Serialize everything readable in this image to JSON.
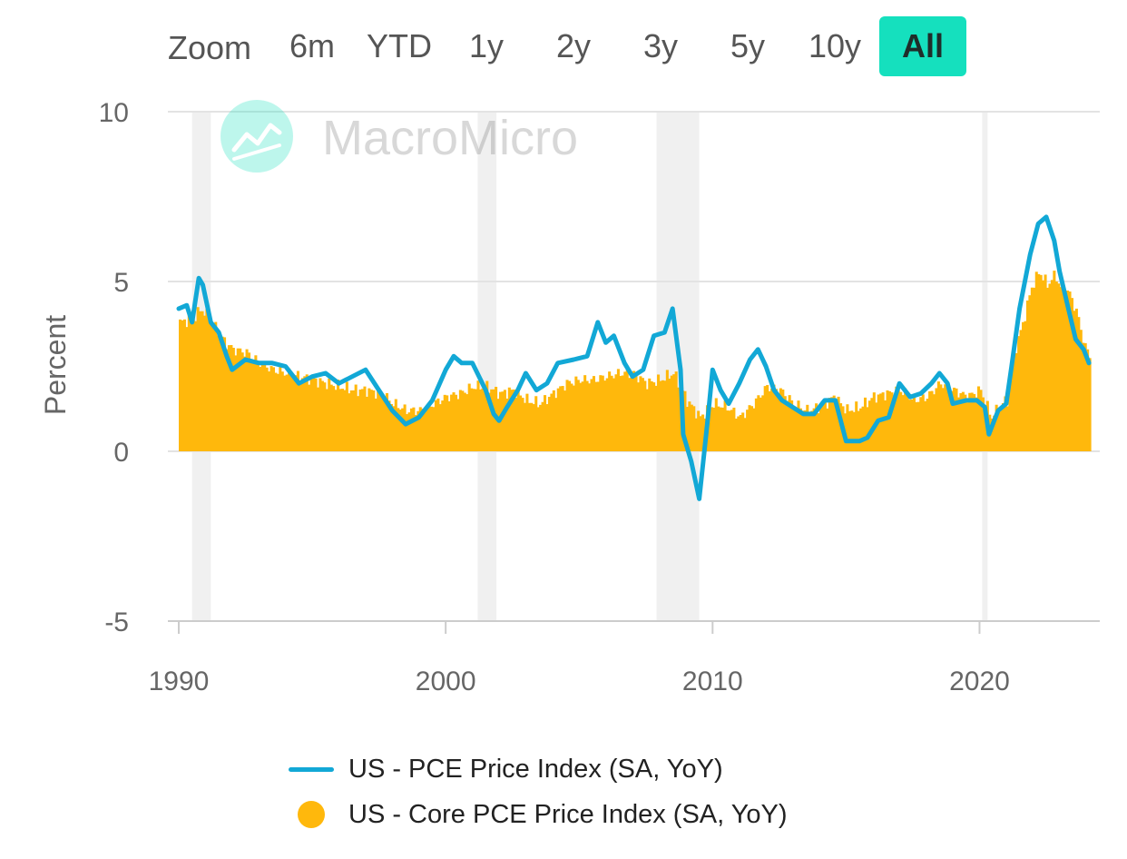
{
  "zoom": {
    "label": "Zoom",
    "buttons": [
      "6m",
      "YTD",
      "1y",
      "2y",
      "3y",
      "5y",
      "10y",
      "All"
    ],
    "active": "All"
  },
  "watermark": "MacroMicro",
  "colors": {
    "pce": "#12a8d6",
    "core": "#ffb80c",
    "recession": "#f0f0f0",
    "accent": "#15e0be"
  },
  "chart_data": {
    "type": "line",
    "ylabel": "Percent",
    "ylim": [
      -5,
      10
    ],
    "yticks": [
      -5,
      0,
      5,
      10
    ],
    "xlim": [
      1990,
      2024.2
    ],
    "xticks": [
      1990,
      2000,
      2010,
      2020
    ],
    "grid": true,
    "legend_position": "bottom",
    "recessions": [
      [
        1990.5,
        1991.2
      ],
      [
        2001.2,
        2001.9
      ],
      [
        2007.9,
        2009.5
      ],
      [
        2020.1,
        2020.3
      ]
    ],
    "series": [
      {
        "name": "US - PCE Price Index (SA, YoY)",
        "type": "line",
        "points": [
          [
            1990.0,
            4.2
          ],
          [
            1990.3,
            4.3
          ],
          [
            1990.5,
            3.8
          ],
          [
            1990.75,
            5.1
          ],
          [
            1990.9,
            4.9
          ],
          [
            1991.2,
            3.8
          ],
          [
            1991.5,
            3.5
          ],
          [
            1991.8,
            2.8
          ],
          [
            1992.0,
            2.4
          ],
          [
            1992.5,
            2.7
          ],
          [
            1993.0,
            2.6
          ],
          [
            1993.5,
            2.6
          ],
          [
            1994.0,
            2.5
          ],
          [
            1994.5,
            2.0
          ],
          [
            1995.0,
            2.2
          ],
          [
            1995.5,
            2.3
          ],
          [
            1996.0,
            2.0
          ],
          [
            1996.5,
            2.2
          ],
          [
            1997.0,
            2.4
          ],
          [
            1997.5,
            1.8
          ],
          [
            1998.0,
            1.2
          ],
          [
            1998.5,
            0.8
          ],
          [
            1999.0,
            1.0
          ],
          [
            1999.5,
            1.5
          ],
          [
            2000.0,
            2.4
          ],
          [
            2000.3,
            2.8
          ],
          [
            2000.6,
            2.6
          ],
          [
            2001.0,
            2.6
          ],
          [
            2001.5,
            1.8
          ],
          [
            2001.8,
            1.1
          ],
          [
            2002.0,
            0.9
          ],
          [
            2002.3,
            1.3
          ],
          [
            2002.7,
            1.8
          ],
          [
            2003.0,
            2.3
          ],
          [
            2003.4,
            1.8
          ],
          [
            2003.8,
            2.0
          ],
          [
            2004.2,
            2.6
          ],
          [
            2004.8,
            2.7
          ],
          [
            2005.3,
            2.8
          ],
          [
            2005.7,
            3.8
          ],
          [
            2006.0,
            3.2
          ],
          [
            2006.3,
            3.4
          ],
          [
            2006.7,
            2.6
          ],
          [
            2007.0,
            2.2
          ],
          [
            2007.4,
            2.4
          ],
          [
            2007.8,
            3.4
          ],
          [
            2008.2,
            3.5
          ],
          [
            2008.5,
            4.2
          ],
          [
            2008.8,
            2.4
          ],
          [
            2008.9,
            0.5
          ],
          [
            2009.2,
            -0.3
          ],
          [
            2009.5,
            -1.4
          ],
          [
            2009.8,
            0.8
          ],
          [
            2010.0,
            2.4
          ],
          [
            2010.3,
            1.8
          ],
          [
            2010.6,
            1.4
          ],
          [
            2011.0,
            2.0
          ],
          [
            2011.4,
            2.7
          ],
          [
            2011.7,
            3.0
          ],
          [
            2012.0,
            2.5
          ],
          [
            2012.3,
            1.8
          ],
          [
            2012.6,
            1.5
          ],
          [
            2013.0,
            1.3
          ],
          [
            2013.4,
            1.1
          ],
          [
            2013.8,
            1.1
          ],
          [
            2014.2,
            1.5
          ],
          [
            2014.6,
            1.5
          ],
          [
            2015.0,
            0.3
          ],
          [
            2015.5,
            0.3
          ],
          [
            2015.8,
            0.4
          ],
          [
            2016.2,
            0.9
          ],
          [
            2016.6,
            1.0
          ],
          [
            2017.0,
            2.0
          ],
          [
            2017.4,
            1.6
          ],
          [
            2017.8,
            1.7
          ],
          [
            2018.2,
            2.0
          ],
          [
            2018.5,
            2.3
          ],
          [
            2018.8,
            2.0
          ],
          [
            2019.0,
            1.4
          ],
          [
            2019.5,
            1.5
          ],
          [
            2019.9,
            1.5
          ],
          [
            2020.2,
            1.3
          ],
          [
            2020.35,
            0.5
          ],
          [
            2020.7,
            1.2
          ],
          [
            2021.0,
            1.4
          ],
          [
            2021.2,
            2.5
          ],
          [
            2021.5,
            4.2
          ],
          [
            2021.9,
            5.8
          ],
          [
            2022.2,
            6.7
          ],
          [
            2022.5,
            6.9
          ],
          [
            2022.8,
            6.2
          ],
          [
            2023.0,
            5.3
          ],
          [
            2023.3,
            4.3
          ],
          [
            2023.6,
            3.3
          ],
          [
            2023.9,
            3.0
          ],
          [
            2024.1,
            2.6
          ]
        ]
      },
      {
        "name": "US - Core PCE Price Index (SA, YoY)",
        "type": "area",
        "points": [
          [
            1990.0,
            3.8
          ],
          [
            1990.5,
            3.9
          ],
          [
            1990.8,
            4.2
          ],
          [
            1991.2,
            3.8
          ],
          [
            1991.7,
            3.2
          ],
          [
            1992.0,
            3.0
          ],
          [
            1992.5,
            2.9
          ],
          [
            1993.0,
            2.6
          ],
          [
            1993.5,
            2.4
          ],
          [
            1994.0,
            2.3
          ],
          [
            1994.5,
            2.2
          ],
          [
            1995.0,
            2.1
          ],
          [
            1995.5,
            2.0
          ],
          [
            1996.0,
            1.9
          ],
          [
            1996.5,
            1.8
          ],
          [
            1997.0,
            1.8
          ],
          [
            1997.5,
            1.7
          ],
          [
            1998.0,
            1.4
          ],
          [
            1998.5,
            1.2
          ],
          [
            1999.0,
            1.2
          ],
          [
            1999.5,
            1.4
          ],
          [
            2000.0,
            1.6
          ],
          [
            2000.5,
            1.7
          ],
          [
            2001.0,
            1.9
          ],
          [
            2001.5,
            1.9
          ],
          [
            2002.0,
            1.7
          ],
          [
            2002.5,
            1.8
          ],
          [
            2003.0,
            1.5
          ],
          [
            2003.5,
            1.4
          ],
          [
            2004.0,
            1.7
          ],
          [
            2004.5,
            2.0
          ],
          [
            2005.0,
            2.1
          ],
          [
            2005.5,
            2.1
          ],
          [
            2006.0,
            2.2
          ],
          [
            2006.5,
            2.3
          ],
          [
            2007.0,
            2.3
          ],
          [
            2007.5,
            2.0
          ],
          [
            2008.0,
            2.1
          ],
          [
            2008.5,
            2.3
          ],
          [
            2009.0,
            1.5
          ],
          [
            2009.5,
            1.0
          ],
          [
            2010.0,
            1.4
          ],
          [
            2010.5,
            1.3
          ],
          [
            2011.0,
            1.0
          ],
          [
            2011.5,
            1.4
          ],
          [
            2012.0,
            1.9
          ],
          [
            2012.5,
            1.8
          ],
          [
            2013.0,
            1.4
          ],
          [
            2013.5,
            1.2
          ],
          [
            2014.0,
            1.3
          ],
          [
            2014.5,
            1.6
          ],
          [
            2015.0,
            1.2
          ],
          [
            2015.5,
            1.3
          ],
          [
            2016.0,
            1.6
          ],
          [
            2016.5,
            1.7
          ],
          [
            2017.0,
            1.8
          ],
          [
            2017.5,
            1.5
          ],
          [
            2018.0,
            1.6
          ],
          [
            2018.5,
            2.0
          ],
          [
            2019.0,
            1.8
          ],
          [
            2019.5,
            1.6
          ],
          [
            2020.0,
            1.8
          ],
          [
            2020.4,
            1.0
          ],
          [
            2020.8,
            1.4
          ],
          [
            2021.0,
            1.5
          ],
          [
            2021.3,
            3.0
          ],
          [
            2021.6,
            3.8
          ],
          [
            2021.9,
            4.8
          ],
          [
            2022.2,
            5.3
          ],
          [
            2022.5,
            4.9
          ],
          [
            2022.8,
            5.2
          ],
          [
            2023.0,
            4.8
          ],
          [
            2023.3,
            4.7
          ],
          [
            2023.6,
            4.1
          ],
          [
            2023.9,
            3.1
          ],
          [
            2024.1,
            2.8
          ]
        ]
      }
    ]
  }
}
